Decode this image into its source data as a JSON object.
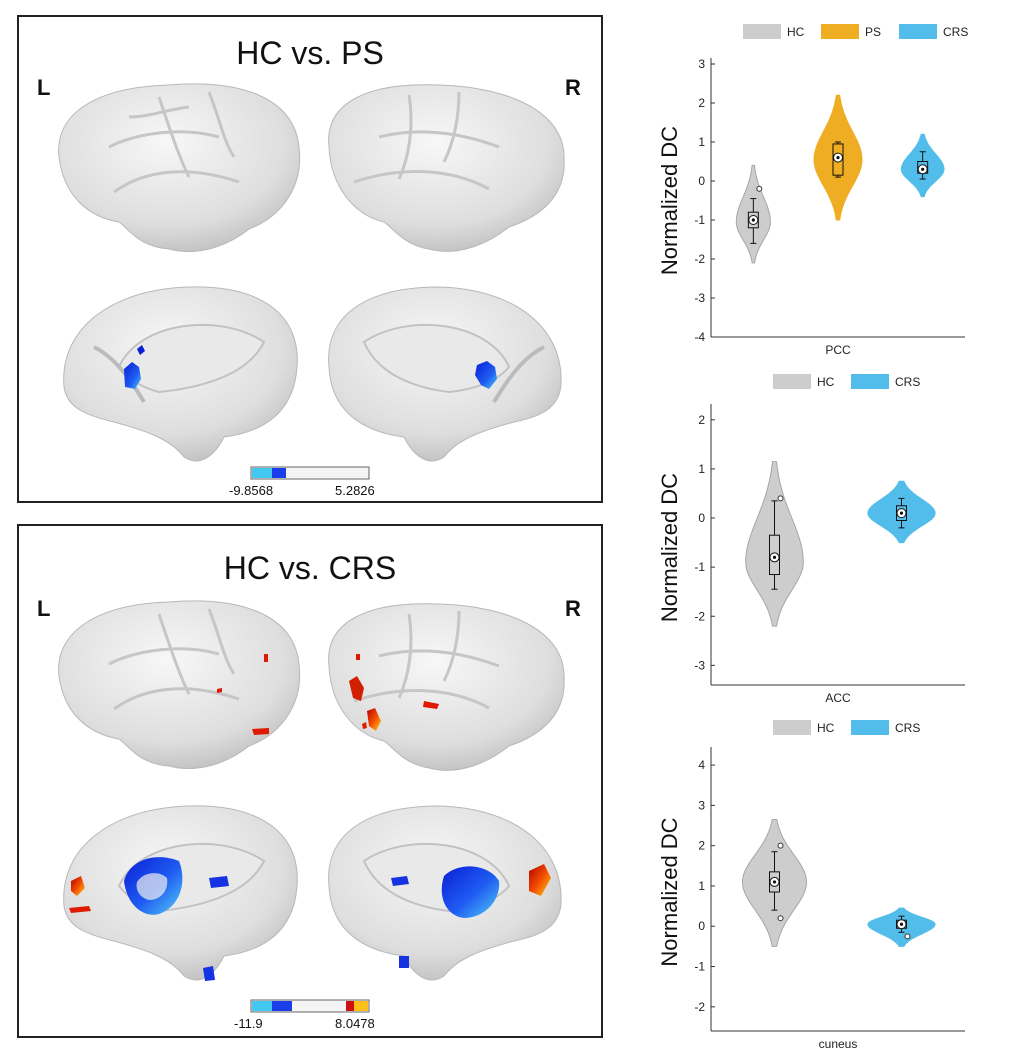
{
  "colors": {
    "hc": "#cdcdcd",
    "ps": "#efad23",
    "crs": "#52bdea",
    "brain": "#e4e4e4",
    "sulcus": "#c4c4c4"
  },
  "panel_top": {
    "title": "HC vs. PS",
    "left_label": "L",
    "right_label": "R",
    "colorbar": {
      "min_label": "-9.8568",
      "max_label": "5.2826"
    }
  },
  "panel_bottom": {
    "title": "HC vs. CRS",
    "left_label": "L",
    "right_label": "R",
    "colorbar": {
      "min_label": "-11.9",
      "max_label": "8.0478"
    }
  },
  "chart_data": [
    {
      "type": "violin",
      "legend": [
        "HC",
        "PS",
        "CRS"
      ],
      "ylabel": "Normalized DC",
      "xlabel": "PCC",
      "ylim": [
        -4,
        3
      ],
      "yticks": [
        3,
        2,
        1,
        0,
        -1,
        -2,
        -3,
        -4
      ],
      "series": [
        {
          "name": "HC",
          "color": "#cdcdcd",
          "min": -2.1,
          "max": 0.4,
          "median": -1.0,
          "q1": -1.2,
          "q3": -0.8,
          "whisker_low": -1.6,
          "whisker_high": -0.45,
          "peak": -1.05,
          "width": 0.32,
          "outliers": [
            -0.2
          ]
        },
        {
          "name": "PS",
          "color": "#efad23",
          "min": -1.0,
          "max": 2.2,
          "median": 0.6,
          "q1": 0.15,
          "q3": 0.95,
          "whisker_low": 0.1,
          "whisker_high": 1.0,
          "peak": 0.55,
          "width": 0.45,
          "outliers": []
        },
        {
          "name": "CRS",
          "color": "#52bdea",
          "min": -0.4,
          "max": 1.2,
          "median": 0.3,
          "q1": 0.2,
          "q3": 0.5,
          "whisker_low": 0.05,
          "whisker_high": 0.75,
          "peak": 0.3,
          "width": 0.4,
          "outliers": []
        }
      ]
    },
    {
      "type": "violin",
      "legend": [
        "HC",
        "CRS"
      ],
      "ylabel": "Normalized DC",
      "xlabel": "ACC",
      "ylim": [
        -3.4,
        2.2
      ],
      "yticks": [
        2,
        1,
        0,
        -1,
        -2,
        -3
      ],
      "series": [
        {
          "name": "HC",
          "color": "#cdcdcd",
          "min": -2.2,
          "max": 1.15,
          "median": -0.8,
          "q1": -1.15,
          "q3": -0.35,
          "whisker_low": -1.45,
          "whisker_high": 0.35,
          "peak": -0.9,
          "width": 0.36,
          "outliers": [
            0.4
          ]
        },
        {
          "name": "CRS",
          "color": "#52bdea",
          "min": -0.5,
          "max": 0.75,
          "median": 0.1,
          "q1": -0.05,
          "q3": 0.25,
          "whisker_low": -0.2,
          "whisker_high": 0.4,
          "peak": 0.1,
          "width": 0.42,
          "outliers": []
        }
      ]
    },
    {
      "type": "violin",
      "legend": [
        "HC",
        "CRS"
      ],
      "ylabel": "Normalized DC",
      "xlabel": "cuneus",
      "ylim": [
        -2.6,
        4.3
      ],
      "yticks": [
        4,
        3,
        2,
        1,
        0,
        -1,
        -2
      ],
      "series": [
        {
          "name": "HC",
          "color": "#cdcdcd",
          "min": -0.5,
          "max": 2.65,
          "median": 1.1,
          "q1": 0.85,
          "q3": 1.35,
          "whisker_low": 0.4,
          "whisker_high": 1.85,
          "peak": 1.1,
          "width": 0.4,
          "outliers": [
            2.0,
            0.2
          ]
        },
        {
          "name": "CRS",
          "color": "#52bdea",
          "min": -0.5,
          "max": 0.45,
          "median": 0.05,
          "q1": -0.05,
          "q3": 0.15,
          "whisker_low": -0.15,
          "whisker_high": 0.25,
          "peak": 0.05,
          "width": 0.42,
          "outliers": [
            -0.25
          ]
        }
      ]
    }
  ]
}
